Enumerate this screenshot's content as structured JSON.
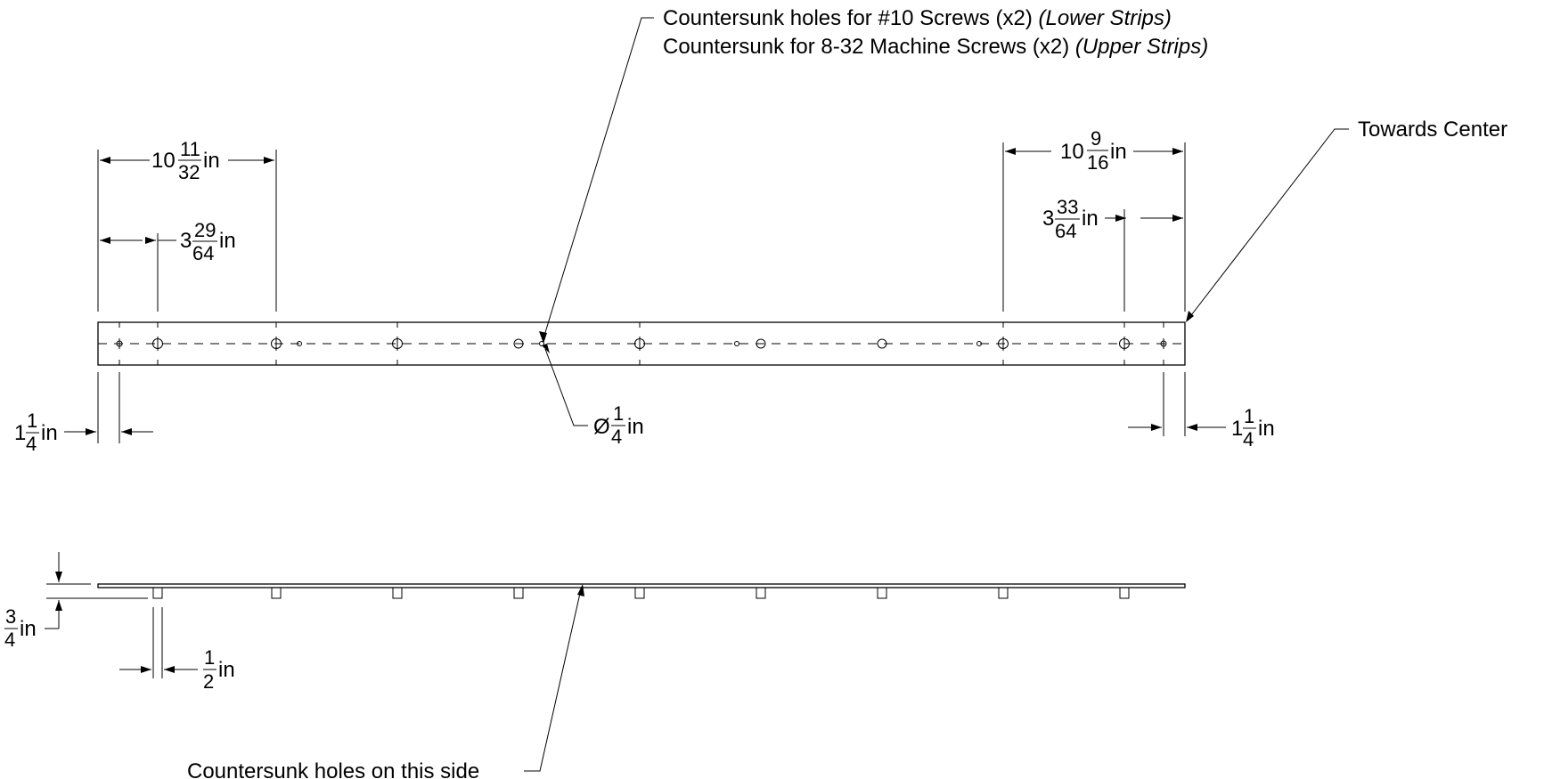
{
  "callouts": {
    "countersunk_line1": "Countersunk holes for #10 Screws (x2)",
    "countersunk_line1_italic": "(Lower Strips)",
    "countersunk_line2": "Countersunk for 8-32 Machine Screws (x2)",
    "countersunk_line2_italic": "(Upper Strips)",
    "towards_center": "Towards Center",
    "countersunk_side": "Countersunk holes on this side"
  },
  "dimensions": {
    "left_overall": {
      "whole": "10",
      "num": "11",
      "den": "32",
      "unit": "in"
    },
    "left_first": {
      "whole": "3",
      "num": "29",
      "den": "64",
      "unit": "in"
    },
    "right_overall": {
      "whole": "10",
      "num": "9",
      "den": "16",
      "unit": "in"
    },
    "right_first": {
      "whole": "3",
      "num": "33",
      "den": "64",
      "unit": "in"
    },
    "left_edge": {
      "whole": "1",
      "num": "1",
      "den": "4",
      "unit": "in"
    },
    "right_edge": {
      "whole": "1",
      "num": "1",
      "den": "4",
      "unit": "in"
    },
    "hole_dia": {
      "prefix": "Ø",
      "num": "1",
      "den": "4",
      "unit": "in"
    },
    "side_height": {
      "num": "3",
      "den": "4",
      "unit": "in"
    },
    "side_tab": {
      "num": "1",
      "den": "2",
      "unit": "in"
    }
  }
}
